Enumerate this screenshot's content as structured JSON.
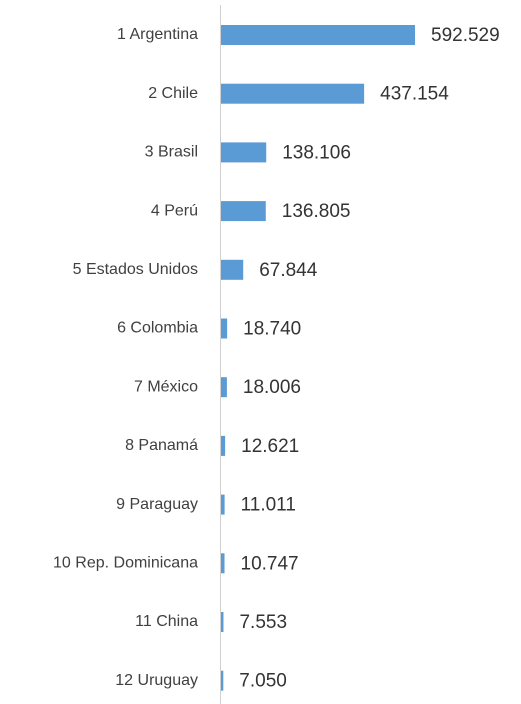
{
  "chart_data": {
    "type": "hbar",
    "categories": [
      "1 Argentina",
      "2 Chile",
      "3 Brasil",
      "4 Perú",
      "5 Estados Unidos",
      "6 Colombia",
      "7 México",
      "8 Panamá",
      "9 Paraguay",
      "10 Rep. Dominicana",
      "11 China",
      "12 Uruguay"
    ],
    "values": [
      592529,
      437154,
      138106,
      136805,
      67844,
      18740,
      18006,
      12621,
      11011,
      10747,
      7553,
      7050
    ],
    "value_labels": [
      "592.529",
      "437.154",
      "138.106",
      "136.805",
      "67.844",
      "18.740",
      "18.006",
      "12.621",
      "11.011",
      "10.747",
      "7.553",
      "7.050"
    ],
    "color": "#5b9bd5"
  }
}
